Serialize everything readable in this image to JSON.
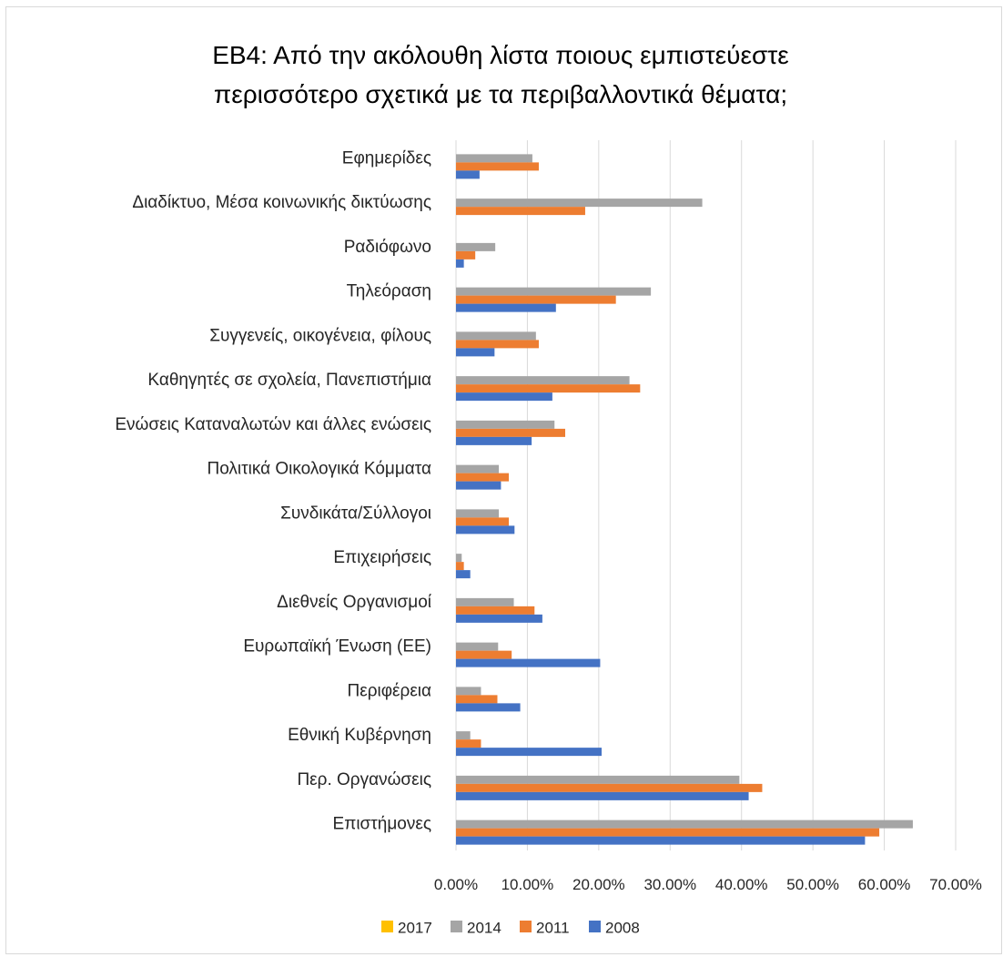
{
  "colors": {
    "2017": "#ffc000",
    "2014": "#a5a5a5",
    "2011": "#ed7d31",
    "2008": "#4472c4",
    "gridline": "#d9d9d9",
    "frame": "#d9d9d9"
  },
  "chart_data": {
    "type": "bar",
    "orientation": "horizontal",
    "title_lines": [
      "ΕΒ4: Από την ακόλουθη λίστα ποιους εμπιστεύεστε",
      "περισσότερο σχετικά με τα περιβαλλοντικά θέματα;"
    ],
    "categories": [
      "Εφημερίδες",
      "Διαδίκτυο, Μέσα κοινωνικής δικτύωσης",
      "Ραδιόφωνο",
      "Τηλεόραση",
      "Συγγενείς, οικογένεια, φίλους",
      "Καθηγητές σε σχολεία, Πανεπιστήμια",
      "Ενώσεις Καταναλωτών και άλλες ενώσεις",
      "Πολιτικά Οικολογικά Κόμματα",
      "Συνδικάτα/Σύλλογοι",
      "Επιχειρήσεις",
      "Διεθνείς Οργανισμοί",
      "Ευρωπαϊκή Ένωση (ΕΕ)",
      "Περιφέρεια",
      "Εθνική Κυβέρνηση",
      "Περ. Οργανώσεις",
      "Επιστήμονες"
    ],
    "series": [
      {
        "name": "2017",
        "colorKey": "2017",
        "values": [
          0,
          0,
          0,
          0,
          0,
          0,
          0,
          0,
          0,
          0,
          0,
          0,
          0,
          0,
          0,
          0
        ]
      },
      {
        "name": "2014",
        "colorKey": "2014",
        "values": [
          10.7,
          34.5,
          5.5,
          27.3,
          11.2,
          24.3,
          13.8,
          6.0,
          6.0,
          0.8,
          8.1,
          5.9,
          3.5,
          2.0,
          39.7,
          64.0
        ]
      },
      {
        "name": "2011",
        "colorKey": "2011",
        "values": [
          11.6,
          18.1,
          2.7,
          22.4,
          11.6,
          25.8,
          15.3,
          7.4,
          7.4,
          1.1,
          11.0,
          7.8,
          5.8,
          3.5,
          42.9,
          59.3
        ]
      },
      {
        "name": "2008",
        "colorKey": "2008",
        "values": [
          3.3,
          0,
          1.1,
          14.0,
          5.4,
          13.5,
          10.6,
          6.3,
          8.2,
          2.0,
          12.1,
          20.2,
          9.0,
          20.4,
          41.0,
          57.3
        ]
      }
    ],
    "xlim": [
      0,
      70
    ],
    "xticks": [
      "0.00%",
      "10.00%",
      "20.00%",
      "30.00%",
      "40.00%",
      "50.00%",
      "60.00%",
      "70.00%"
    ],
    "xgrid": true,
    "legend_position": "bottom",
    "legend_order": [
      "2017",
      "2014",
      "2011",
      "2008"
    ]
  }
}
